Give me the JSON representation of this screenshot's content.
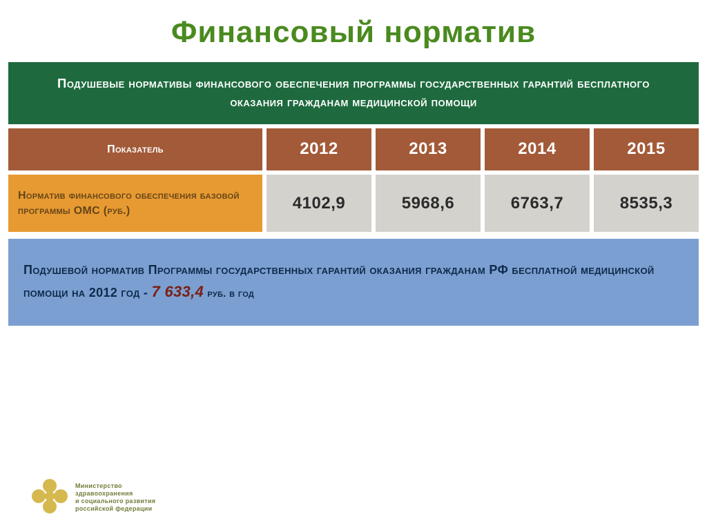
{
  "colors": {
    "title": "#4a8a1f",
    "header_bg": "#1e6a3e",
    "header_text": "#ffffff",
    "brown_bg": "#a35a38",
    "brown_text": "#ffffff",
    "amber_bg": "#e79a32",
    "amber_text": "#654518",
    "value_bg": "#d4d2cd",
    "value_text": "#2b2b2b",
    "bottom_bg": "#7c9fd1",
    "bottom_text": "#0d2a4a",
    "highlight": "#7a2015",
    "footer_text": "#6f7e39",
    "logo": "#d5b94f"
  },
  "title": "Финансовый норматив",
  "header": "Подушевые нормативы финансового обеспечения программы государственных гарантий бесплатного оказания гражданам медицинской помощи",
  "table": {
    "indicator_label": "Показатель",
    "row_label": "Норматив финансового обеспечения базовой программы ОМС (руб.)",
    "years": [
      "2012",
      "2013",
      "2014",
      "2015"
    ],
    "values": [
      "4102,9",
      "5968,6",
      "6763,7",
      "8535,3"
    ]
  },
  "bottom": {
    "text": "Подушевой норматив Программы государственных гарантий оказания гражданам РФ бесплатной медицинской помощи на 2012 год - ",
    "highlight": "7 633,4",
    "tail": " руб. в год"
  },
  "footer": {
    "line1": "Министерство",
    "line2": "здравоохранения",
    "line3": "и социального развития",
    "line4": "российской федерации"
  }
}
